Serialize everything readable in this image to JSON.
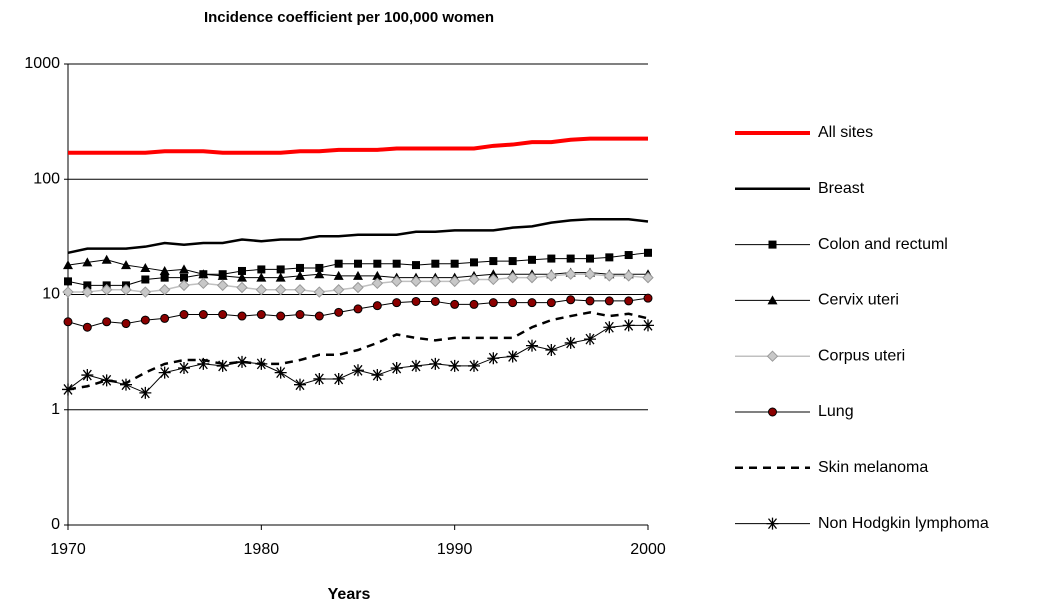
{
  "chart_data": {
    "type": "line",
    "title": "Incidence coefficient per 100,000 women",
    "x_label": "Years",
    "x": [
      1970,
      1971,
      1972,
      1973,
      1974,
      1975,
      1976,
      1977,
      1978,
      1979,
      1980,
      1981,
      1982,
      1983,
      1984,
      1985,
      1986,
      1987,
      1988,
      1989,
      1990,
      1991,
      1992,
      1993,
      1994,
      1995,
      1996,
      1997,
      1998,
      1999,
      2000
    ],
    "xlim": [
      1970,
      2000
    ],
    "xticks": [
      1970,
      1980,
      1990,
      2000
    ],
    "ylim": [
      0.1,
      1000
    ],
    "log_y": true,
    "yticks": [
      {
        "value": 0.1,
        "label": "0"
      },
      1,
      10,
      100,
      1000
    ],
    "grid": true,
    "legend": "right",
    "series": [
      {
        "name": "All sites",
        "color": "#ff0000",
        "width": 4,
        "marker": "none",
        "dash": false,
        "values": [
          170,
          170,
          170,
          170,
          170,
          175,
          175,
          175,
          170,
          170,
          170,
          170,
          175,
          175,
          180,
          180,
          180,
          185,
          185,
          185,
          185,
          185,
          195,
          200,
          210,
          210,
          220,
          225,
          225,
          225,
          225
        ]
      },
      {
        "name": "Breast",
        "color": "#000000",
        "width": 2.5,
        "marker": "none",
        "dash": false,
        "values": [
          23,
          25,
          25,
          25,
          26,
          28,
          27,
          28,
          28,
          30,
          29,
          30,
          30,
          32,
          32,
          33,
          33,
          33,
          35,
          35,
          36,
          36,
          36,
          38,
          39,
          42,
          44,
          45,
          45,
          45,
          43
        ]
      },
      {
        "name": "Colon and rectuml",
        "color": "#000000",
        "width": 1,
        "marker": "square",
        "dash": false,
        "values": [
          13,
          12,
          12,
          12,
          13.5,
          14,
          14,
          15,
          15,
          16,
          16.5,
          16.5,
          17,
          17,
          18.5,
          18.5,
          18.5,
          18.5,
          18,
          18.5,
          18.5,
          19,
          19.5,
          19.5,
          20,
          20.5,
          20.5,
          20.5,
          21,
          22,
          23
        ]
      },
      {
        "name": "Cervix uteri",
        "color": "#000000",
        "width": 1,
        "marker": "triangle",
        "dash": false,
        "values": [
          18,
          19,
          20,
          18,
          17,
          16,
          16.5,
          15,
          14.5,
          14,
          14,
          14,
          14.5,
          15,
          14.5,
          14.5,
          14.5,
          14,
          14,
          14,
          14,
          14.5,
          15,
          15,
          15,
          15,
          15.5,
          15.5,
          15,
          15,
          15
        ]
      },
      {
        "name": "Corpus uteri",
        "color": "#c0c0c0",
        "width": 1.5,
        "marker": "diamond",
        "dash": false,
        "values": [
          10.5,
          10.5,
          11,
          11,
          10.5,
          11,
          12,
          12.5,
          12,
          11.5,
          11,
          11,
          11,
          10.5,
          11,
          11.5,
          12.5,
          13,
          13,
          13,
          13,
          13.5,
          13.5,
          14,
          14,
          14.5,
          15,
          15,
          14.5,
          14.5,
          14
        ]
      },
      {
        "name": "Lung",
        "color": "#000000",
        "width": 1,
        "marker": "circle",
        "dash": false,
        "values": [
          5.8,
          5.2,
          5.8,
          5.6,
          6,
          6.2,
          6.7,
          6.7,
          6.7,
          6.5,
          6.7,
          6.5,
          6.7,
          6.5,
          7,
          7.5,
          8,
          8.5,
          8.7,
          8.7,
          8.2,
          8.2,
          8.5,
          8.5,
          8.5,
          8.5,
          9,
          8.8,
          8.8,
          8.8,
          9.3
        ]
      },
      {
        "name": "Skin melanoma",
        "color": "#000000",
        "width": 2.5,
        "marker": "none",
        "dash": true,
        "values": [
          1.5,
          1.6,
          1.8,
          1.7,
          2.1,
          2.5,
          2.7,
          2.7,
          2.5,
          2.6,
          2.5,
          2.5,
          2.7,
          3,
          3,
          3.3,
          3.8,
          4.5,
          4.2,
          4,
          4.2,
          4.2,
          4.2,
          4.2,
          5.2,
          6,
          6.5,
          7,
          6.5,
          6.8,
          6.2
        ]
      },
      {
        "name": "Non Hodgkin lymphoma",
        "color": "#000000",
        "width": 1,
        "marker": "star",
        "dash": false,
        "values": [
          1.5,
          2,
          1.8,
          1.65,
          1.4,
          2.1,
          2.3,
          2.5,
          2.4,
          2.6,
          2.5,
          2.1,
          1.65,
          1.85,
          1.85,
          2.2,
          2,
          2.3,
          2.4,
          2.5,
          2.4,
          2.4,
          2.8,
          2.9,
          3.6,
          3.3,
          3.8,
          4.1,
          5.2,
          5.4,
          5.4
        ]
      }
    ]
  }
}
